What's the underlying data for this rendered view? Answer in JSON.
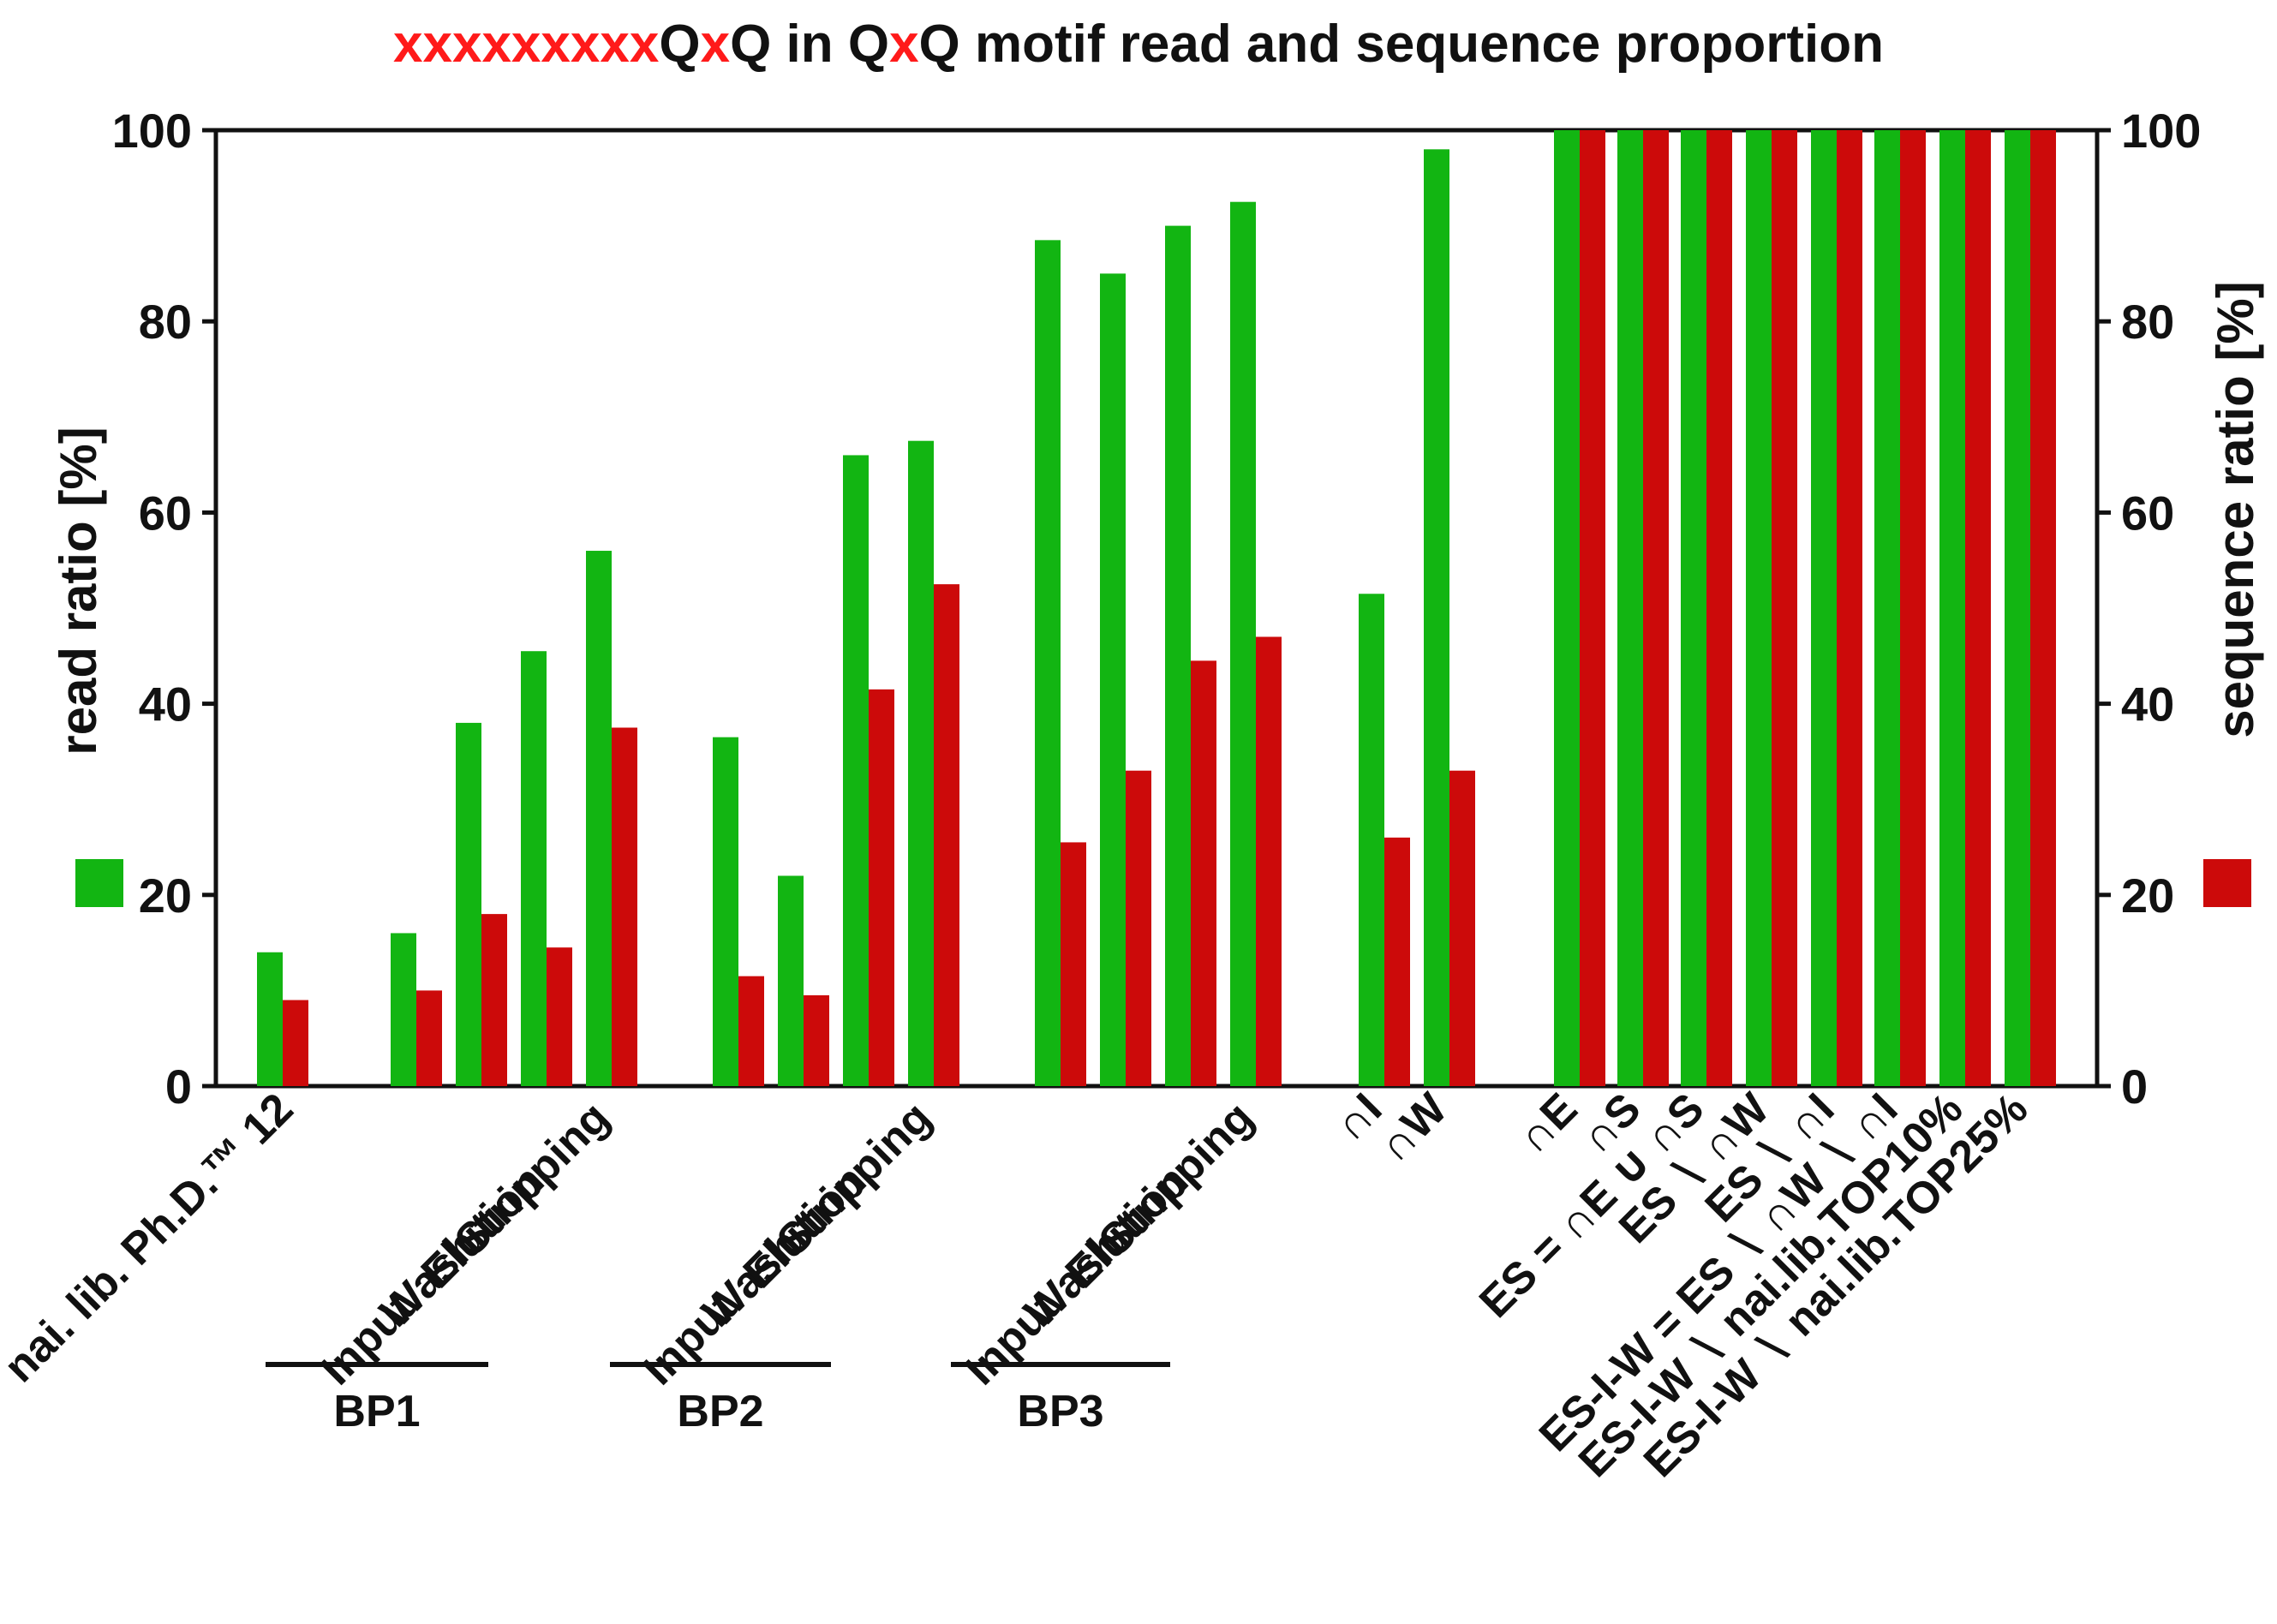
{
  "chart_data": {
    "type": "bar",
    "title": {
      "segments": [
        {
          "text": "xxxxxxxxx",
          "color": "#ff1a1a"
        },
        {
          "text": "Q",
          "color": "#111111"
        },
        {
          "text": "x",
          "color": "#ff1a1a"
        },
        {
          "text": "Q in Q",
          "color": "#111111"
        },
        {
          "text": "x",
          "color": "#ff1a1a"
        },
        {
          "text": "Q motif read and sequence proportion",
          "color": "#111111"
        }
      ]
    },
    "ylabel_left": "read ratio [%]",
    "ylabel_right": "sequence ratio [%]",
    "ylim": [
      0,
      100
    ],
    "yticks": [
      "0",
      "20",
      "40",
      "60",
      "80",
      "100"
    ],
    "series": [
      {
        "name": "read ratio",
        "color": "#12b512",
        "values": [
          14,
          16,
          38,
          45.5,
          56,
          36.5,
          22,
          66,
          67.5,
          88.5,
          85,
          90,
          92.5,
          51.5,
          98,
          100,
          100,
          100,
          100,
          100,
          100,
          100,
          100
        ]
      },
      {
        "name": "sequence ratio",
        "color": "#cc0a0a",
        "values": [
          9,
          10,
          18,
          14.5,
          37.5,
          11.5,
          9.5,
          41.5,
          52.5,
          25.5,
          33,
          44.5,
          47,
          26,
          33,
          100,
          100,
          100,
          100,
          100,
          100,
          100,
          100
        ]
      }
    ],
    "categories": [
      "nai. lib. Ph.D.™ 12",
      "Input",
      "Wash",
      "Elution",
      "Stripping",
      "Input",
      "Wash",
      "Elution",
      "Stripping",
      "Input",
      "Wash",
      "Elution",
      "Stripping",
      "∩I",
      "∩W",
      "∩E",
      "∩S",
      "ES = ∩E ∪ ∩S",
      "ES ∖ ∩W",
      "ES ∖ ∩I",
      "ES-I-W = ES ∖ ∩W ∖ ∩I",
      "ES-I-W ∖ nai.lib.TOP10%",
      "ES-I-W ∖ nai.lib.TOP25%"
    ],
    "groups": [
      {
        "label": "BP1"
      },
      {
        "label": "BP2"
      },
      {
        "label": "BP3"
      }
    ]
  }
}
